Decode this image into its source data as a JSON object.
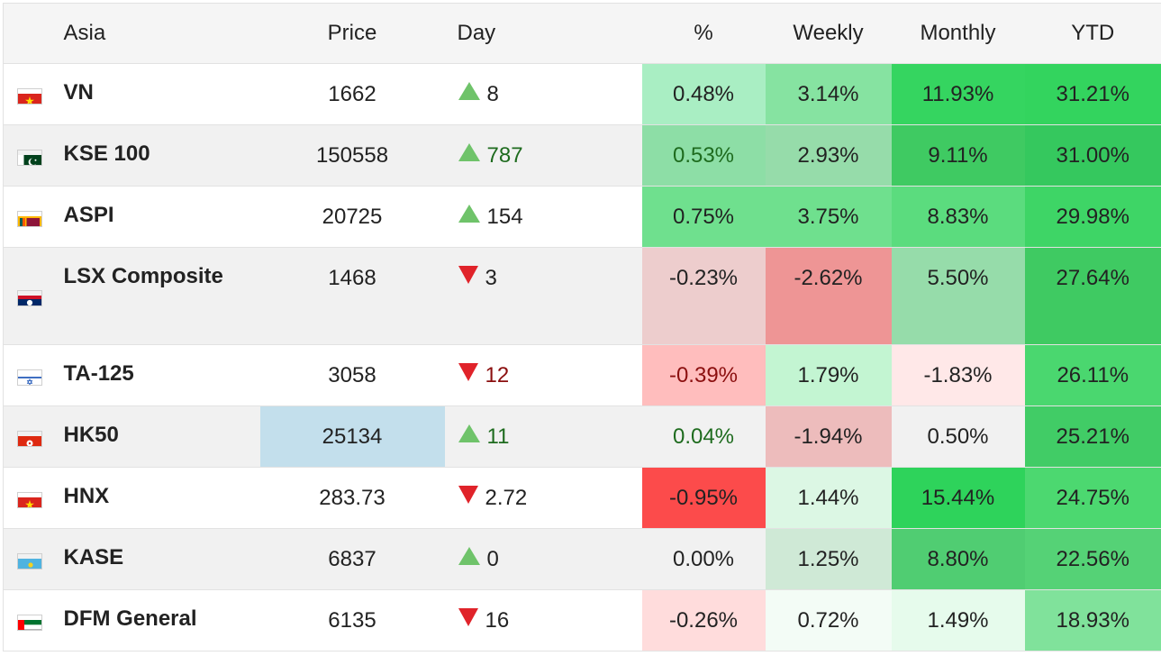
{
  "header": {
    "region": "Asia",
    "price": "Price",
    "day": "Day",
    "pct": "%",
    "weekly": "Weekly",
    "monthly": "Monthly",
    "ytd": "YTD"
  },
  "rows": [
    {
      "flag": "vietnam-flag-icon",
      "name": "VN",
      "price": "1662",
      "day_dir": "up",
      "day": "8",
      "day_color": "neutral",
      "pct": "0.48%",
      "pct_bg": "#a9eec3",
      "pct_color": "neutral",
      "weekly": "3.14%",
      "weekly_bg": "#86e3a1",
      "monthly": "11.93%",
      "monthly_bg": "#35d560",
      "ytd": "31.21%",
      "ytd_bg": "#33d45e"
    },
    {
      "flag": "pakistan-flag-icon",
      "name": "KSE 100",
      "price": "150558",
      "day_dir": "up",
      "day": "787",
      "day_color": "positive",
      "pct": "0.53%",
      "pct_bg": "#8ddea6",
      "pct_color": "positive",
      "weekly": "2.93%",
      "weekly_bg": "#96dcaa",
      "monthly": "9.11%",
      "monthly_bg": "#3fca62",
      "ytd": "31.00%",
      "ytd_bg": "#35c85e"
    },
    {
      "flag": "sri-lanka-flag-icon",
      "name": "ASPI",
      "price": "20725",
      "day_dir": "up",
      "day": "154",
      "day_color": "neutral",
      "pct": "0.75%",
      "pct_bg": "#6fe08e",
      "pct_color": "neutral",
      "weekly": "3.75%",
      "weekly_bg": "#6fe08e",
      "monthly": "8.83%",
      "monthly_bg": "#5bdc7e",
      "ytd": "29.98%",
      "ytd_bg": "#3ed566"
    },
    {
      "flag": "laos-flag-icon",
      "name": "LSX Composite",
      "price": "1468",
      "day_dir": "down",
      "day": "3",
      "day_color": "neutral",
      "pct": "-0.23%",
      "pct_bg": "#edcdcd",
      "pct_color": "neutral",
      "weekly": "-2.62%",
      "weekly_bg": "#ee9595",
      "monthly": "5.50%",
      "monthly_bg": "#96dcaa",
      "ytd": "27.64%",
      "ytd_bg": "#3fca62"
    },
    {
      "flag": "israel-flag-icon",
      "name": "TA-125",
      "price": "3058",
      "day_dir": "down",
      "day": "12",
      "day_color": "negative",
      "pct": "-0.39%",
      "pct_bg": "#ffbdbd",
      "pct_color": "negative",
      "weekly": "1.79%",
      "weekly_bg": "#c3f5d2",
      "monthly": "-1.83%",
      "monthly_bg": "#ffe8e8",
      "ytd": "26.11%",
      "ytd_bg": "#4ad76f"
    },
    {
      "flag": "hong-kong-flag-icon",
      "name": "HK50",
      "price": "25134",
      "price_bg": "#c3dfec",
      "day_dir": "up",
      "day": "11",
      "day_color": "positive",
      "pct": "0.04%",
      "pct_bg": "",
      "pct_color": "positive",
      "weekly": "-1.94%",
      "weekly_bg": "#edbcbc",
      "monthly": "0.50%",
      "monthly_bg": "",
      "ytd": "25.21%",
      "ytd_bg": "#41cc66"
    },
    {
      "flag": "vietnam-flag-icon",
      "name": "HNX",
      "price": "283.73",
      "day_dir": "down",
      "day": "2.72",
      "day_color": "neutral",
      "pct": "-0.95%",
      "pct_bg": "#fc4b4b",
      "pct_color": "neutral",
      "weekly": "1.44%",
      "weekly_bg": "#dcf7e4",
      "monthly": "15.44%",
      "monthly_bg": "#2ed35b",
      "ytd": "24.75%",
      "ytd_bg": "#4cd870"
    },
    {
      "flag": "kazakhstan-flag-icon",
      "name": "KASE",
      "price": "6837",
      "day_dir": "up",
      "day": "0",
      "day_color": "neutral",
      "pct": "0.00%",
      "pct_bg": "",
      "pct_color": "neutral",
      "weekly": "1.25%",
      "weekly_bg": "#cfe9d6",
      "monthly": "8.80%",
      "monthly_bg": "#50cd72",
      "ytd": "22.56%",
      "ytd_bg": "#55d276"
    },
    {
      "flag": "uae-flag-icon",
      "name": "DFM General",
      "price": "6135",
      "day_dir": "down",
      "day": "16",
      "day_color": "neutral",
      "pct": "-0.26%",
      "pct_bg": "#ffdcdc",
      "pct_color": "neutral",
      "weekly": "0.72%",
      "weekly_bg": "#f3fcf6",
      "monthly": "1.49%",
      "monthly_bg": "#e6fbec",
      "ytd": "18.93%",
      "ytd_bg": "#80e29b"
    }
  ]
}
